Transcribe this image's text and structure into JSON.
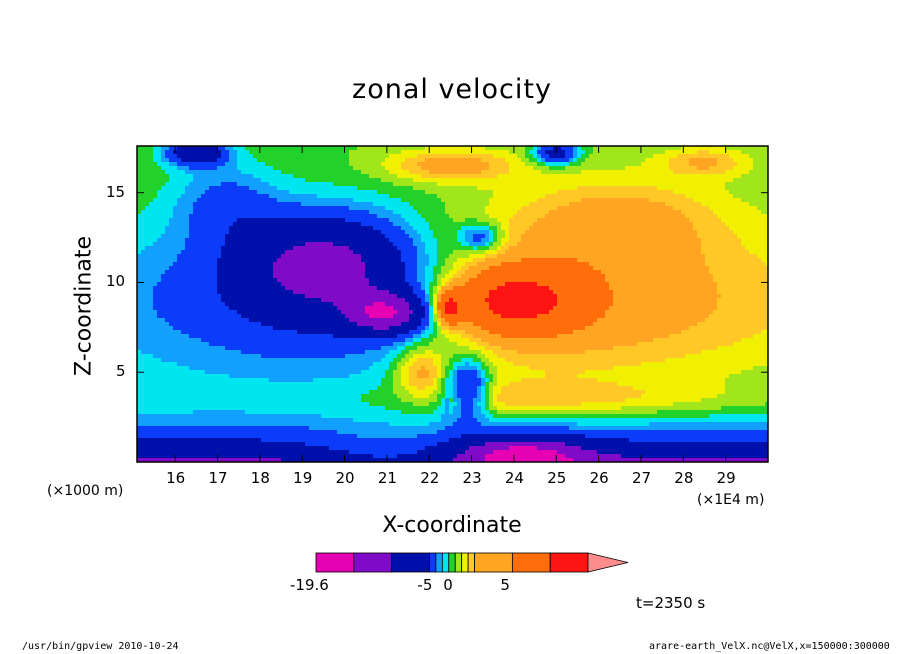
{
  "chart_data": {
    "type": "heatmap",
    "title": "zonal velocity",
    "xlabel": "X-coordinate",
    "ylabel": "Z-coordinate",
    "x_unit_label": "(×1E4 m)",
    "y_unit_label": "(×1000 m)",
    "xlim": [
      15.1,
      30.0
    ],
    "ylim": [
      0.0,
      17.6
    ],
    "x_ticks": [
      16,
      17,
      18,
      19,
      20,
      21,
      22,
      23,
      24,
      25,
      26,
      27,
      28,
      29
    ],
    "y_ticks": [
      5,
      10,
      15
    ],
    "time_label": "t=2350 s",
    "colorbar": {
      "tick_labels": [
        "-19.6",
        "-5",
        "0",
        "5"
      ],
      "tick_values": [
        -19.6,
        -5,
        0,
        5
      ],
      "levels": [
        -19.6,
        -15,
        -10,
        -5,
        -3,
        -2,
        -1,
        0,
        1,
        2,
        3,
        5,
        10,
        15
      ],
      "colors": [
        "#e600b4",
        "#7f0ac8",
        "#0010aa",
        "#0a3cfa",
        "#12a0ff",
        "#00e6f0",
        "#22d22a",
        "#a0e61a",
        "#f0f000",
        "#ffc826",
        "#ffa522",
        "#ff6e0a",
        "#ff1414",
        "#ff8c8c"
      ],
      "extend": "max"
    }
  },
  "footer": {
    "left": "/usr/bin/gpview   2010-10-24",
    "right": "arare-earth_VelX.nc@VelX,x=150000:300000"
  }
}
